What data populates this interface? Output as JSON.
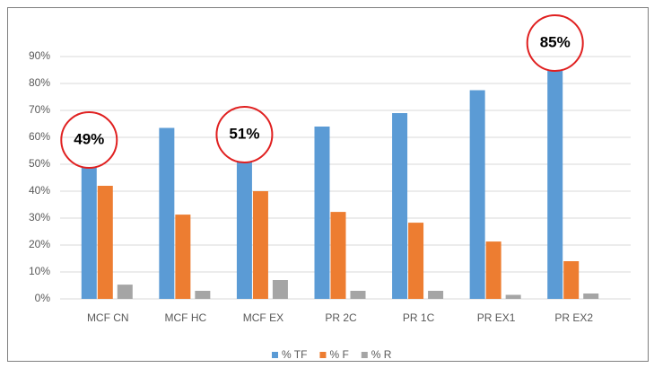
{
  "chart_data": {
    "type": "bar",
    "categories": [
      "MCF CN",
      "MCF HC",
      "MCF EX",
      "PR 2C",
      "PR 1C",
      "PR EX1",
      "PR EX2"
    ],
    "series": [
      {
        "name": "% TF",
        "color": "#5b9bd5",
        "values": [
          49,
          63.5,
          51,
          64,
          69,
          77.5,
          85
        ],
        "value_labels": [
          "49%",
          null,
          "51%",
          null,
          null,
          null,
          "85%"
        ]
      },
      {
        "name": "% F",
        "color": "#ed7d31",
        "values": [
          42,
          31.3,
          40,
          32.3,
          28.3,
          21.3,
          14
        ]
      },
      {
        "name": "% R",
        "color": "#a5a5a5",
        "values": [
          5.3,
          3,
          7,
          3,
          3,
          1.5,
          2
        ]
      }
    ],
    "ylim": [
      0,
      90
    ],
    "yticks": [
      {
        "value": 0,
        "label": "0%"
      },
      {
        "value": 10,
        "label": "10%"
      },
      {
        "value": 20,
        "label": "20%"
      },
      {
        "value": 30,
        "label": "30%"
      },
      {
        "value": 40,
        "label": "40%"
      },
      {
        "value": 50,
        "label": "50%"
      },
      {
        "value": 60,
        "label": "60%"
      },
      {
        "value": 70,
        "label": "70%"
      },
      {
        "value": 80,
        "label": "80%"
      },
      {
        "value": 90,
        "label": "90%"
      }
    ],
    "grid": true,
    "legend": "bottom"
  }
}
